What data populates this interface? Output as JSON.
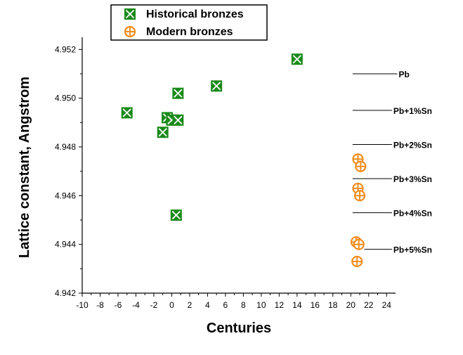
{
  "chart_data": {
    "type": "scatter",
    "xlabel": "Centuries",
    "ylabel": "Lattice constant, Angstrom",
    "xlim": [
      -10,
      25
    ],
    "ylim": [
      4.942,
      4.9525
    ],
    "x_ticks": [
      "-10",
      "-8",
      "-6",
      "-4",
      "-2",
      "0",
      "2",
      "4",
      "6",
      "8",
      "10",
      "12",
      "14",
      "16",
      "18",
      "20",
      "22",
      "24"
    ],
    "x_tick_values": [
      -10,
      -8,
      -6,
      -4,
      -2,
      0,
      2,
      4,
      6,
      8,
      10,
      12,
      14,
      16,
      18,
      20,
      22,
      24
    ],
    "y_ticks": [
      "4.942",
      "4.944",
      "4.946",
      "4.948",
      "4.950",
      "4.952"
    ],
    "y_tick_values": [
      4.942,
      4.944,
      4.946,
      4.948,
      4.95,
      4.952
    ],
    "legend_position": "top-left",
    "grid": false,
    "series": [
      {
        "name": "Historical bronzes",
        "color": "#1a8a1a",
        "marker": "square-x",
        "points": [
          {
            "x": -5,
            "y": 4.9494
          },
          {
            "x": -1,
            "y": 4.9486
          },
          {
            "x": -0.5,
            "y": 4.9492
          },
          {
            "x": 0,
            "y": 4.9491
          },
          {
            "x": 0.7,
            "y": 4.9491
          },
          {
            "x": 0.7,
            "y": 4.9502
          },
          {
            "x": 0.5,
            "y": 4.9452
          },
          {
            "x": 5,
            "y": 4.9505
          },
          {
            "x": 14,
            "y": 4.9516
          }
        ]
      },
      {
        "name": "Modern bronzes",
        "color": "#f28c1c",
        "marker": "circle-plus",
        "points": [
          {
            "x": 20.8,
            "y": 4.9475
          },
          {
            "x": 21.1,
            "y": 4.9472
          },
          {
            "x": 20.8,
            "y": 4.9463
          },
          {
            "x": 21.0,
            "y": 4.946
          },
          {
            "x": 20.6,
            "y": 4.9441
          },
          {
            "x": 20.9,
            "y": 4.944
          },
          {
            "x": 20.7,
            "y": 4.9433
          }
        ]
      }
    ],
    "reference_lines": [
      {
        "label": "Pb",
        "y": 4.951,
        "x_start": 20.2,
        "x_end": 25.2
      },
      {
        "label": "Pb+1%Sn",
        "y": 4.9495,
        "x_start": 20.2,
        "x_end": 24.6
      },
      {
        "label": "Pb+2%Sn",
        "y": 4.9481,
        "x_start": 20.2,
        "x_end": 24.6
      },
      {
        "label": "Pb+3%Sn",
        "y": 4.9467,
        "x_start": 20.2,
        "x_end": 24.6
      },
      {
        "label": "Pb+4%Sn",
        "y": 4.9453,
        "x_start": 20.2,
        "x_end": 24.6
      },
      {
        "label": "Pb+5%Sn",
        "y": 4.9438,
        "x_start": 21.5,
        "x_end": 24.6
      }
    ]
  }
}
